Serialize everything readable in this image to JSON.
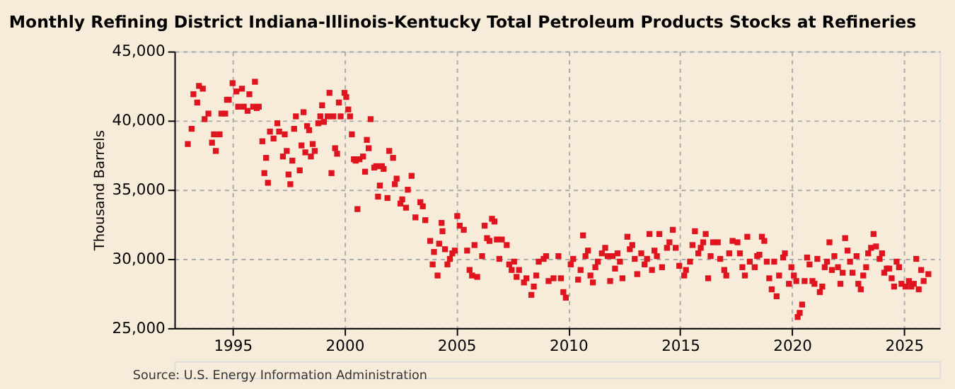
{
  "chart_data": {
    "type": "scatter",
    "title": "Monthly Refining District Indiana-Illinois-Kentucky Total Petroleum Products Stocks at Refineries",
    "ylabel": "Thousand Barrels",
    "annotations": [
      "Source: U.S. Energy Information Administration"
    ],
    "xlim": [
      1992.4,
      2026.6
    ],
    "xticks": [
      1995,
      2000,
      2005,
      2010,
      2015,
      2020,
      2025
    ],
    "ylim": [
      25000,
      45000
    ],
    "yticks": [
      {
        "value": 25000,
        "label": "25,000"
      },
      {
        "value": 30000,
        "label": "30,000"
      },
      {
        "value": 35000,
        "label": "35,000"
      },
      {
        "value": 40000,
        "label": "40,000"
      },
      {
        "value": 45000,
        "label": "45,000"
      }
    ],
    "grid": true,
    "marker": "square",
    "legend": false,
    "series": [
      {
        "color": "#e0141e",
        "x": [
          1993.0,
          1993.17,
          1993.25,
          1993.42,
          1993.5,
          1993.67,
          1993.75,
          1993.92,
          1994.08,
          1994.17,
          1994.25,
          1994.42,
          1994.5,
          1994.67,
          1994.75,
          1994.83,
          1995.0,
          1995.17,
          1995.25,
          1995.42,
          1995.5,
          1995.67,
          1995.75,
          1995.92,
          1996.0,
          1996.08,
          1996.17,
          1996.33,
          1996.42,
          1996.5,
          1996.58,
          1996.67,
          1996.83,
          1997.0,
          1997.08,
          1997.25,
          1997.33,
          1997.42,
          1997.5,
          1997.58,
          1997.67,
          1997.75,
          1997.83,
          1998.0,
          1998.08,
          1998.17,
          1998.25,
          1998.33,
          1998.42,
          1998.5,
          1998.58,
          1998.67,
          1998.83,
          1998.92,
          1999.0,
          1999.08,
          1999.25,
          1999.33,
          1999.42,
          1999.5,
          1999.58,
          1999.67,
          1999.75,
          1999.83,
          2000.0,
          2000.08,
          2000.17,
          2000.25,
          2000.33,
          2000.42,
          2000.5,
          2000.58,
          2000.67,
          2000.83,
          2000.92,
          2001.0,
          2001.08,
          2001.17,
          2001.33,
          2001.42,
          2001.5,
          2001.58,
          2001.67,
          2001.75,
          2001.92,
          2002.0,
          2002.17,
          2002.25,
          2002.33,
          2002.5,
          2002.58,
          2002.75,
          2002.83,
          2003.0,
          2003.17,
          2003.39,
          2003.5,
          2003.61,
          2003.83,
          2003.94,
          2004.0,
          2004.16,
          2004.23,
          2004.34,
          2004.38,
          2004.49,
          2004.6,
          2004.71,
          2004.82,
          2004.93,
          2005.04,
          2005.15,
          2005.33,
          2005.48,
          2005.59,
          2005.7,
          2005.81,
          2005.93,
          2006.15,
          2006.26,
          2006.37,
          2006.48,
          2006.59,
          2006.7,
          2006.81,
          2006.92,
          2007.03,
          2007.25,
          2007.36,
          2007.47,
          2007.58,
          2007.69,
          2007.8,
          2008.02,
          2008.13,
          2008.35,
          2008.46,
          2008.57,
          2008.68,
          2008.9,
          2009.01,
          2009.12,
          2009.34,
          2009.56,
          2009.67,
          2009.78,
          2009.89,
          2010.11,
          2010.22,
          2010.44,
          2010.55,
          2010.66,
          2010.77,
          2010.88,
          2010.99,
          2011.1,
          2011.21,
          2011.32,
          2011.5,
          2011.65,
          2011.76,
          2011.87,
          2011.98,
          2012.09,
          2012.2,
          2012.31,
          2012.42,
          2012.64,
          2012.75,
          2012.86,
          2012.97,
          2013.08,
          2013.26,
          2013.41,
          2013.52,
          2013.63,
          2013.74,
          2013.85,
          2013.96,
          2014.07,
          2014.19,
          2014.41,
          2014.52,
          2014.67,
          2014.8,
          2014.96,
          2015.18,
          2015.26,
          2015.44,
          2015.55,
          2015.66,
          2015.81,
          2015.92,
          2016.03,
          2016.14,
          2016.25,
          2016.36,
          2016.47,
          2016.68,
          2016.79,
          2016.97,
          2017.06,
          2017.19,
          2017.34,
          2017.56,
          2017.67,
          2017.78,
          2017.89,
          2018.0,
          2018.11,
          2018.33,
          2018.44,
          2018.54,
          2018.65,
          2018.76,
          2018.87,
          2018.98,
          2019.09,
          2019.2,
          2019.31,
          2019.42,
          2019.6,
          2019.68,
          2019.86,
          2019.97,
          2020.08,
          2020.19,
          2020.25,
          2020.34,
          2020.45,
          2020.56,
          2020.67,
          2020.78,
          2020.91,
          2021.0,
          2021.13,
          2021.24,
          2021.35,
          2021.46,
          2021.56,
          2021.67,
          2021.78,
          2021.89,
          2022.05,
          2022.16,
          2022.26,
          2022.37,
          2022.48,
          2022.59,
          2022.7,
          2022.88,
          2022.96,
          2023.07,
          2023.18,
          2023.31,
          2023.4,
          2023.53,
          2023.64,
          2023.75,
          2023.91,
          2024.02,
          2024.12,
          2024.23,
          2024.34,
          2024.45,
          2024.56,
          2024.67,
          2024.78,
          2024.89,
          2025.07,
          2025.22,
          2025.33,
          2025.44,
          2025.55,
          2025.66,
          2025.77,
          2025.88,
          2026.09
        ],
        "values": [
          38300,
          39400,
          41900,
          41300,
          42500,
          42300,
          40100,
          40500,
          38400,
          39000,
          37800,
          39000,
          40500,
          40500,
          41500,
          41500,
          42700,
          42100,
          41000,
          42300,
          41000,
          40700,
          41900,
          41000,
          42800,
          40900,
          41000,
          38500,
          36200,
          37300,
          35500,
          39200,
          38700,
          39800,
          39200,
          37400,
          39000,
          37800,
          36100,
          35400,
          37100,
          39400,
          40300,
          36400,
          38200,
          40600,
          37700,
          39600,
          39300,
          37400,
          38300,
          37800,
          39800,
          40300,
          41100,
          39900,
          40300,
          42000,
          36200,
          40300,
          38000,
          37600,
          41300,
          40300,
          42000,
          41700,
          40800,
          40300,
          39000,
          37200,
          37100,
          33600,
          37200,
          37400,
          36300,
          38600,
          38000,
          40100,
          36600,
          36700,
          34500,
          35300,
          36700,
          36500,
          34400,
          37800,
          37300,
          35400,
          35800,
          34000,
          34300,
          33700,
          35000,
          36000,
          33000,
          34100,
          33800,
          32800,
          31300,
          29600,
          30500,
          28800,
          31100,
          32600,
          32000,
          30700,
          29600,
          30000,
          30400,
          30600,
          33100,
          32400,
          32100,
          30600,
          29200,
          28800,
          31000,
          28700,
          30200,
          32400,
          31500,
          31300,
          32900,
          32700,
          31400,
          30000,
          31400,
          31000,
          29600,
          29200,
          29800,
          28700,
          29200,
          28300,
          28600,
          27400,
          28000,
          28800,
          29800,
          30000,
          30200,
          28400,
          28600,
          30200,
          28600,
          27600,
          27200,
          29600,
          30000,
          28500,
          29200,
          31700,
          30200,
          30600,
          28800,
          28300,
          29400,
          29800,
          30400,
          30800,
          30200,
          28400,
          30200,
          29300,
          30400,
          29800,
          28600,
          31600,
          30700,
          31000,
          30000,
          28900,
          30400,
          29600,
          30000,
          31800,
          29200,
          30600,
          30200,
          31800,
          29400,
          30800,
          31200,
          32100,
          30800,
          29500,
          28800,
          29200,
          29800,
          31000,
          32000,
          30400,
          30800,
          31200,
          31800,
          28600,
          30200,
          31200,
          31200,
          30000,
          29200,
          28800,
          30400,
          31300,
          31200,
          30400,
          29400,
          28800,
          31600,
          29800,
          29400,
          30200,
          30300,
          31600,
          31300,
          29800,
          28600,
          27800,
          29800,
          27300,
          28800,
          30100,
          30400,
          28200,
          29400,
          28800,
          28400,
          25800,
          26100,
          26700,
          28400,
          30100,
          29600,
          28400,
          28200,
          30000,
          27600,
          28000,
          29400,
          29800,
          31200,
          29200,
          30200,
          29400,
          28200,
          29000,
          31500,
          30600,
          29800,
          29000,
          30200,
          28200,
          27800,
          28800,
          29400,
          30400,
          30800,
          31800,
          30900,
          30000,
          30400,
          29000,
          29300,
          29300,
          28600,
          28000,
          29800,
          29400,
          28200,
          28000,
          28400,
          28000,
          28200,
          30000,
          27800,
          29200,
          28400,
          28900
        ]
      }
    ]
  }
}
